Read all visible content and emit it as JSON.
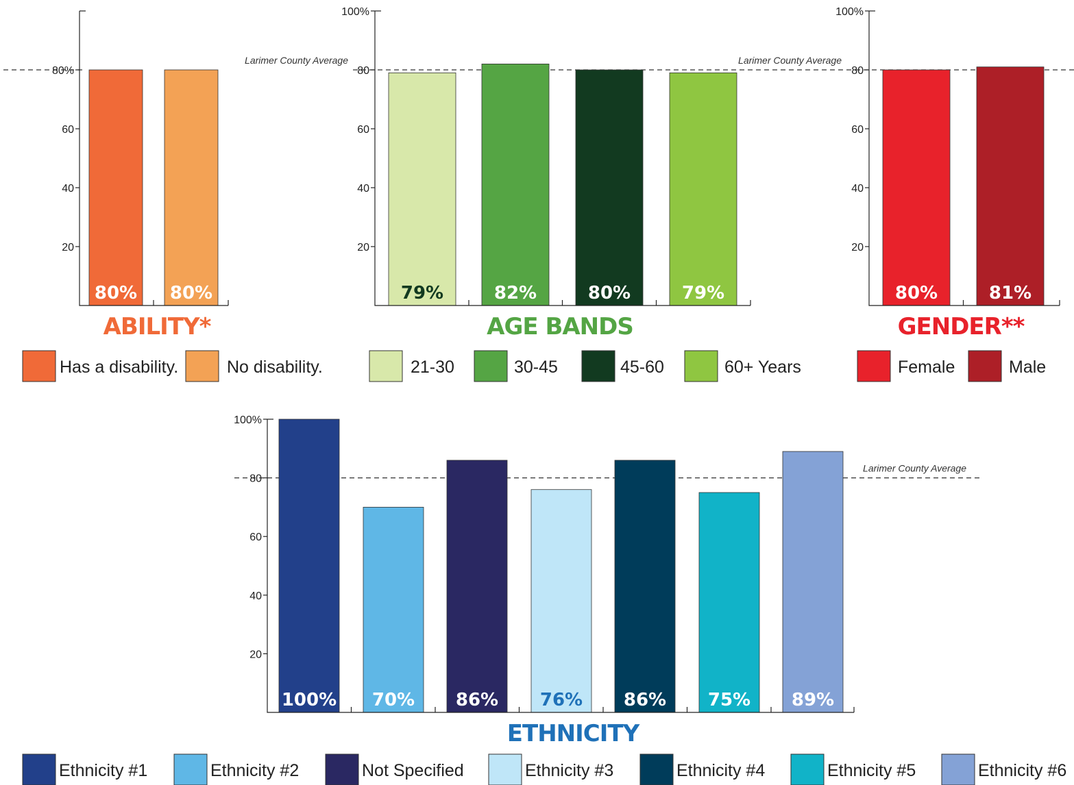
{
  "average_label": "Larimer County Average",
  "chart_data": [
    {
      "id": "ability",
      "type": "bar",
      "title": "ABILITY*",
      "title_color": "#f06a38",
      "y_ticks": [
        "20",
        "40",
        "60",
        "80%"
      ],
      "ylim": [
        0,
        100
      ],
      "average": 80,
      "categories": [
        "Has a disability.",
        "No disability."
      ],
      "values": [
        80,
        80
      ],
      "labels": [
        "80%",
        "80%"
      ],
      "colors": [
        "#f06a38",
        "#f3a255"
      ],
      "label_colors": [
        "#ffffff",
        "#ffffff"
      ]
    },
    {
      "id": "age",
      "type": "bar",
      "title": "AGE BANDS",
      "title_color": "#54a544",
      "y_ticks": [
        "20",
        "40",
        "60",
        "80",
        "100%"
      ],
      "ylim": [
        0,
        100
      ],
      "average": 80,
      "categories": [
        "21-30",
        "30-45",
        "45-60",
        "60+ Years"
      ],
      "values": [
        79,
        82,
        80,
        79
      ],
      "labels": [
        "79%",
        "82%",
        "80%",
        "79%"
      ],
      "colors": [
        "#d8e8aa",
        "#55a544",
        "#123a20",
        "#8fc641"
      ],
      "label_colors": [
        "#123a20",
        "#ffffff",
        "#ffffff",
        "#ffffff"
      ]
    },
    {
      "id": "gender",
      "type": "bar",
      "title": "GENDER**",
      "title_color": "#e8222b",
      "y_ticks": [
        "20",
        "40",
        "60",
        "80",
        "100%"
      ],
      "ylim": [
        0,
        100
      ],
      "average": 80,
      "categories": [
        "Female",
        "Male"
      ],
      "values": [
        80,
        81
      ],
      "labels": [
        "80%",
        "81%"
      ],
      "colors": [
        "#e8222b",
        "#ad1f27"
      ],
      "label_colors": [
        "#ffffff",
        "#ffffff"
      ]
    },
    {
      "id": "ethnicity",
      "type": "bar",
      "title": "ETHNICITY",
      "title_color": "#1f71b8",
      "y_ticks": [
        "20",
        "40",
        "60",
        "80",
        "100%"
      ],
      "ylim": [
        0,
        100
      ],
      "average": 80,
      "categories": [
        "Ethnicity #1",
        "Ethnicity #2",
        "Not Specified",
        "Ethnicity #3",
        "Ethnicity #4",
        "Ethnicity #5",
        "Ethnicity #6"
      ],
      "values": [
        100,
        70,
        86,
        76,
        86,
        75,
        89
      ],
      "labels": [
        "100%",
        "70%",
        "86%",
        "76%",
        "86%",
        "75%",
        "89%"
      ],
      "colors": [
        "#22408a",
        "#5fb7e6",
        "#2a2862",
        "#bfe6f8",
        "#003c5a",
        "#11b3c8",
        "#84a2d6"
      ],
      "label_colors": [
        "#ffffff",
        "#ffffff",
        "#ffffff",
        "#1f71b8",
        "#ffffff",
        "#ffffff",
        "#ffffff"
      ]
    }
  ]
}
